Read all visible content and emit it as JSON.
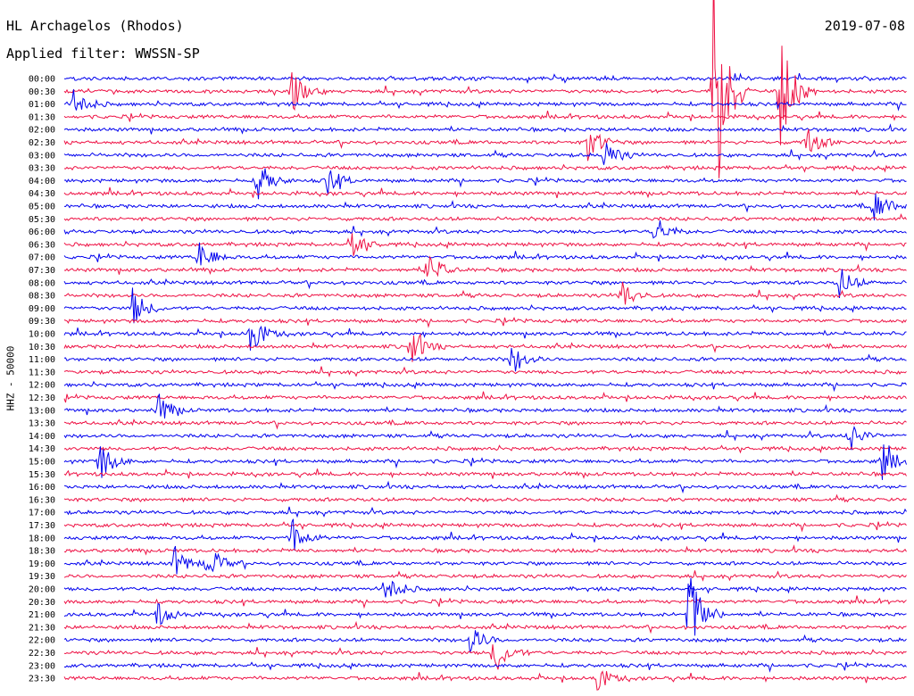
{
  "header": {
    "station": "HL Archagelos (Rhodos)",
    "filter": "Applied filter: WWSSN-SP",
    "date": "2019-07-08",
    "channel": "HHZ - 50000"
  },
  "chart_data": {
    "type": "line",
    "title": "HL Archagelos (Rhodos)",
    "subtitle": "Applied filter: WWSSN-SP",
    "ylabel": "HHZ - 50000",
    "date": "2019-07-08",
    "tick_labels": [
      "00:00",
      "00:30",
      "01:00",
      "01:30",
      "02:00",
      "02:30",
      "03:00",
      "03:30",
      "04:00",
      "04:30",
      "05:00",
      "05:30",
      "06:00",
      "06:30",
      "07:00",
      "07:30",
      "08:00",
      "08:30",
      "09:00",
      "09:30",
      "10:00",
      "10:30",
      "11:00",
      "11:30",
      "12:00",
      "12:30",
      "13:00",
      "13:30",
      "14:00",
      "14:30",
      "15:00",
      "15:30",
      "16:00",
      "16:30",
      "17:00",
      "17:30",
      "18:00",
      "18:30",
      "19:00",
      "19:30",
      "20:00",
      "20:30",
      "21:00",
      "21:30",
      "22:00",
      "22:30",
      "23:00",
      "23:30"
    ],
    "trace_colors": [
      "#0000ee",
      "#ee1144"
    ],
    "events": [
      {
        "row": 1,
        "x": 0.77,
        "amp": 9.0
      },
      {
        "row": 1,
        "x": 0.85,
        "amp": 3.5
      },
      {
        "row": 1,
        "x": 0.27,
        "amp": 1.2
      },
      {
        "row": 2,
        "x": 0.01,
        "amp": 1.0
      },
      {
        "row": 5,
        "x": 0.62,
        "amp": 1.2
      },
      {
        "row": 5,
        "x": 0.88,
        "amp": 1.0
      },
      {
        "row": 6,
        "x": 0.64,
        "amp": 1.0
      },
      {
        "row": 8,
        "x": 0.23,
        "amp": 1.2
      },
      {
        "row": 8,
        "x": 0.31,
        "amp": 1.0
      },
      {
        "row": 10,
        "x": 0.96,
        "amp": 1.2
      },
      {
        "row": 12,
        "x": 0.7,
        "amp": 1.0
      },
      {
        "row": 13,
        "x": 0.34,
        "amp": 1.0
      },
      {
        "row": 14,
        "x": 0.16,
        "amp": 1.0
      },
      {
        "row": 15,
        "x": 0.43,
        "amp": 1.2
      },
      {
        "row": 16,
        "x": 0.92,
        "amp": 1.0
      },
      {
        "row": 17,
        "x": 0.66,
        "amp": 1.0
      },
      {
        "row": 18,
        "x": 0.08,
        "amp": 1.2
      },
      {
        "row": 20,
        "x": 0.22,
        "amp": 1.2
      },
      {
        "row": 21,
        "x": 0.41,
        "amp": 1.2
      },
      {
        "row": 22,
        "x": 0.53,
        "amp": 1.0
      },
      {
        "row": 26,
        "x": 0.11,
        "amp": 1.0
      },
      {
        "row": 28,
        "x": 0.93,
        "amp": 1.0
      },
      {
        "row": 30,
        "x": 0.04,
        "amp": 1.3
      },
      {
        "row": 30,
        "x": 0.97,
        "amp": 1.1
      },
      {
        "row": 36,
        "x": 0.27,
        "amp": 1.1
      },
      {
        "row": 38,
        "x": 0.13,
        "amp": 1.0
      },
      {
        "row": 38,
        "x": 0.17,
        "amp": 1.1
      },
      {
        "row": 40,
        "x": 0.38,
        "amp": 1.1
      },
      {
        "row": 42,
        "x": 0.74,
        "amp": 3.0
      },
      {
        "row": 42,
        "x": 0.11,
        "amp": 1.0
      },
      {
        "row": 44,
        "x": 0.48,
        "amp": 1.0
      },
      {
        "row": 45,
        "x": 0.51,
        "amp": 1.4
      },
      {
        "row": 47,
        "x": 0.63,
        "amp": 0.8
      }
    ]
  }
}
